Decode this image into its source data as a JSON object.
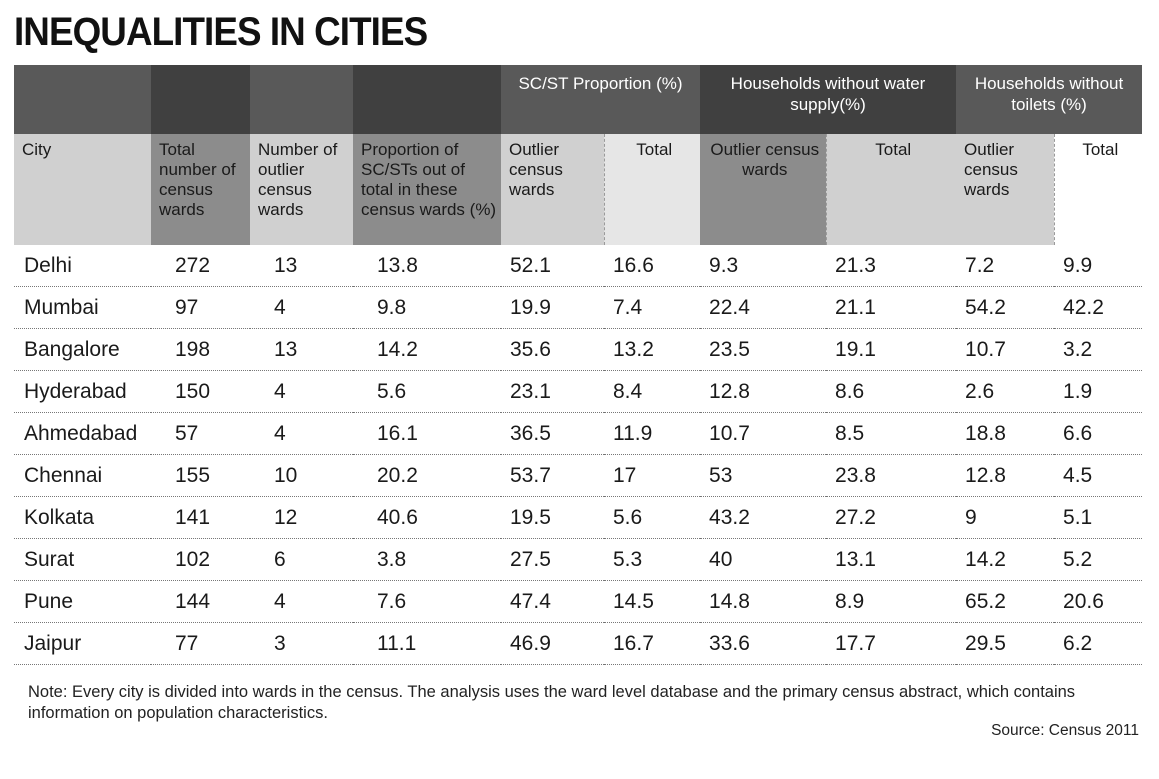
{
  "title": "INEQUALITIES IN CITIES",
  "group_headers": {
    "scst": "SC/ST Proportion (%)",
    "water": "Households without water supply(%)",
    "toilets": "Households without toilets (%)"
  },
  "columns": {
    "city": "City",
    "total_wards": "Total number of census wards",
    "outlier_wards": "Number of outlier census wards",
    "proportion": "Proportion of SC/STs out of total in these census wards (%)",
    "outlier": "Outlier census wards",
    "total": "Total"
  },
  "chart_data": {
    "type": "table",
    "title": "INEQUALITIES IN CITIES",
    "headers": [
      "City",
      "Total number of census wards",
      "Number of outlier census wards",
      "Proportion of SC/STs out of total in these census wards (%)",
      "SC/ST Proportion (%) - Outlier census wards",
      "SC/ST Proportion (%) - Total",
      "Households without water supply(%) - Outlier census wards",
      "Households without water supply(%) - Total",
      "Households without toilets (%) - Outlier census wards",
      "Households without toilets (%) - Total"
    ],
    "rows": [
      [
        "Delhi",
        "272",
        "13",
        "13.8",
        "52.1",
        "16.6",
        "9.3",
        "21.3",
        "7.2",
        "9.9"
      ],
      [
        "Mumbai",
        "97",
        "4",
        "9.8",
        "19.9",
        "7.4",
        "22.4",
        "21.1",
        "54.2",
        "42.2"
      ],
      [
        "Bangalore",
        "198",
        "13",
        "14.2",
        "35.6",
        "13.2",
        "23.5",
        "19.1",
        "10.7",
        "3.2"
      ],
      [
        "Hyderabad",
        "150",
        "4",
        "5.6",
        "23.1",
        "8.4",
        "12.8",
        "8.6",
        "2.6",
        "1.9"
      ],
      [
        "Ahmedabad",
        "57",
        "4",
        "16.1",
        "36.5",
        "11.9",
        "10.7",
        "8.5",
        "18.8",
        "6.6"
      ],
      [
        "Chennai",
        "155",
        "10",
        "20.2",
        "53.7",
        "17",
        "53",
        "23.8",
        "12.8",
        "4.5"
      ],
      [
        "Kolkata",
        "141",
        "12",
        "40.6",
        "19.5",
        "5.6",
        "43.2",
        "27.2",
        "9",
        "5.1"
      ],
      [
        "Surat",
        "102",
        "6",
        "3.8",
        "27.5",
        "5.3",
        "40",
        "13.1",
        "14.2",
        "5.2"
      ],
      [
        "Pune",
        "144",
        "4",
        "7.6",
        "47.4",
        "14.5",
        "14.8",
        "8.9",
        "65.2",
        "20.6"
      ],
      [
        "Jaipur",
        "77",
        "3",
        "11.1",
        "46.9",
        "16.7",
        "33.6",
        "17.7",
        "29.5",
        "6.2"
      ]
    ]
  },
  "note": "Note: Every city is divided into wards in the census. The analysis uses the ward level database and the primary census abstract, which contains information on population characteristics.",
  "source": "Source: Census 2011"
}
